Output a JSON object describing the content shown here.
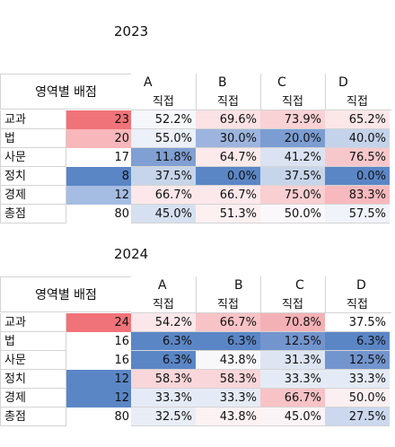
{
  "tables": [
    {
      "year": "2023",
      "corner_label": "영역별 배점",
      "columns": [
        {
          "letter": "A",
          "sub": "직접"
        },
        {
          "letter": "B",
          "sub": "직접"
        },
        {
          "letter": "C",
          "sub": "직접"
        },
        {
          "letter": "D",
          "sub": "직접"
        }
      ],
      "rows": [
        {
          "label": "교과",
          "count": "23",
          "A": "52.2%",
          "B": "69.6%",
          "C": "73.9%",
          "D": "65.2%"
        },
        {
          "label": "법",
          "count": "20",
          "A": "55.0%",
          "B": "30.0%",
          "C": "20.0%",
          "D": "40.0%"
        },
        {
          "label": "사문",
          "count": "17",
          "A": "11.8%",
          "B": "64.7%",
          "C": "41.2%",
          "D": "76.5%"
        },
        {
          "label": "정치",
          "count": "8",
          "A": "37.5%",
          "B": "0.0%",
          "C": "37.5%",
          "D": "0.0%"
        },
        {
          "label": "경제",
          "count": "12",
          "A": "66.7%",
          "B": "66.7%",
          "C": "75.0%",
          "D": "83.3%"
        },
        {
          "label": "총점",
          "count": "80",
          "A": "45.0%",
          "B": "51.3%",
          "C": "50.0%",
          "D": "57.5%"
        }
      ],
      "count_colors": [
        "#f07379",
        "#f8b7ba",
        "#ffffff",
        "#5b86c6",
        "#a6bde3",
        "#ffffff"
      ],
      "cell_colors": [
        [
          "#f6f7fb",
          "#fbe2e4",
          "#f9d2d5",
          "#fbe7e8"
        ],
        [
          "#ecf0f8",
          "#9db5de",
          "#7c9dd2",
          "#c4d3ea"
        ],
        [
          "#809fd2",
          "#fceaeb",
          "#dbe3f2",
          "#f7c8cb"
        ],
        [
          "#c7d5ea",
          "#5b86c6",
          "#c7d5ea",
          "#5b86c6"
        ],
        [
          "#fce8ea",
          "#fce8ea",
          "#f9cfd2",
          "#f7b9bd"
        ],
        [
          "#d6e0f0",
          "#fcf0f1",
          "#fbf8fb",
          "#f0f3f9"
        ]
      ]
    },
    {
      "year": "2024",
      "corner_label": "영역별 배점",
      "columns": [
        {
          "letter": "A",
          "sub": "직접"
        },
        {
          "letter": "B",
          "sub": "직접"
        },
        {
          "letter": "C",
          "sub": "직접"
        },
        {
          "letter": "D",
          "sub": "직접"
        }
      ],
      "rows": [
        {
          "label": "교과",
          "count": "24",
          "A": "54.2%",
          "B": "66.7%",
          "C": "70.8%",
          "D": "37.5%"
        },
        {
          "label": "법",
          "count": "16",
          "A": "6.3%",
          "B": "6.3%",
          "C": "12.5%",
          "D": "6.3%"
        },
        {
          "label": "사문",
          "count": "16",
          "A": "6.3%",
          "B": "43.8%",
          "C": "31.3%",
          "D": "12.5%"
        },
        {
          "label": "정치",
          "count": "12",
          "A": "58.3%",
          "B": "58.3%",
          "C": "33.3%",
          "D": "33.3%"
        },
        {
          "label": "경제",
          "count": "12",
          "A": "33.3%",
          "B": "33.3%",
          "C": "66.7%",
          "D": "50.0%"
        },
        {
          "label": "총점",
          "count": "80",
          "A": "32.5%",
          "B": "43.8%",
          "C": "45.0%",
          "D": "27.5%"
        }
      ],
      "count_colors": [
        "#f07379",
        "#ffffff",
        "#ffffff",
        "#5b86c6",
        "#5b86c6",
        "#ffffff"
      ],
      "cell_colors": [
        [
          "#fbe7e9",
          "#f7c3c6",
          "#f4b1b5",
          "#ffffff"
        ],
        [
          "#5b86c6",
          "#5b86c6",
          "#7395ce",
          "#5b86c6"
        ],
        [
          "#5b86c6",
          "#f8f8fb",
          "#dde5f3",
          "#7395ce"
        ],
        [
          "#f9d6d9",
          "#f9d6d9",
          "#e5ebf6",
          "#e5ebf6"
        ],
        [
          "#e5ebf6",
          "#e5ebf6",
          "#f7c3c6",
          "#fbeff1"
        ],
        [
          "#e8edf6",
          "#fcf2f3",
          "#fbf4f6",
          "#cbd8ee"
        ]
      ]
    }
  ]
}
